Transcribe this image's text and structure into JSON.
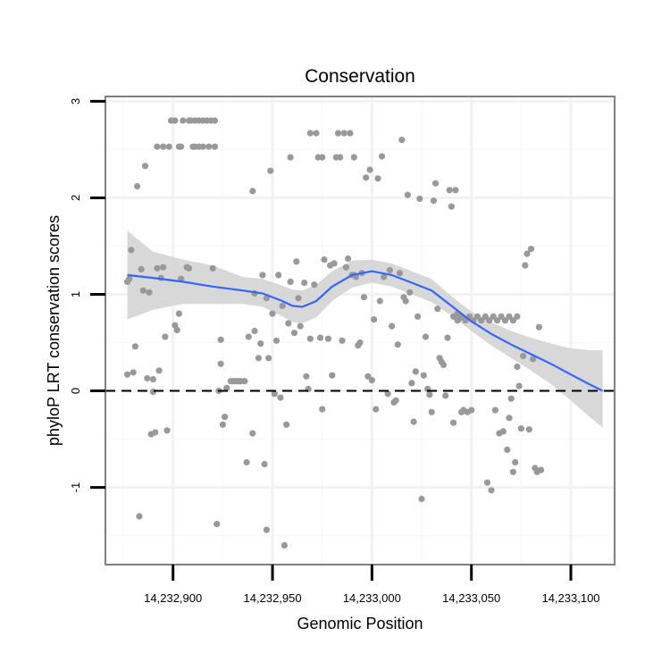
{
  "chart_data": {
    "type": "scatter",
    "title": "Conservation",
    "xlabel": "Genomic Position",
    "ylabel": "phyloP LRT conservation scores",
    "xlim": [
      14232866,
      14233122
    ],
    "ylim": [
      -1.8,
      3.05
    ],
    "x_ticks": [
      14232900,
      14232950,
      14233000,
      14233050,
      14233100
    ],
    "x_tick_labels": [
      "14,232,900",
      "14,232,950",
      "14,233,000",
      "14,233,050",
      "14,233,100"
    ],
    "y_ticks": [
      -1,
      0,
      1,
      2,
      3
    ],
    "y_tick_labels": [
      "-1",
      "0",
      "1",
      "2",
      "3"
    ],
    "reference_line": {
      "y": 0,
      "style": "dashed"
    },
    "colors": {
      "points": "#999999",
      "smooth_line": "#3366FF",
      "ribbon": "#d4d4d4",
      "panel_border": "#7f7f7f",
      "grid_major": "#f2f2f2",
      "grid_minor": "#f9f9f9"
    },
    "smooth": {
      "x": [
        14232877,
        14232890,
        14232905,
        14232920,
        14232935,
        14232945,
        14232955,
        14232960,
        14232965,
        14232972,
        14232980,
        14232990,
        14233000,
        14233010,
        14233020,
        14233030,
        14233040,
        14233050,
        14233060,
        14233070,
        14233080,
        14233090,
        14233100,
        14233110,
        14233116
      ],
      "y": [
        1.2,
        1.17,
        1.13,
        1.08,
        1.04,
        1.01,
        0.93,
        0.88,
        0.87,
        0.93,
        1.08,
        1.2,
        1.24,
        1.2,
        1.12,
        1.04,
        0.88,
        0.72,
        0.59,
        0.48,
        0.38,
        0.28,
        0.17,
        0.06,
        0.0
      ],
      "lower": [
        0.74,
        0.84,
        0.9,
        0.9,
        0.9,
        0.87,
        0.77,
        0.71,
        0.7,
        0.76,
        0.93,
        1.07,
        1.12,
        1.08,
        1.0,
        0.92,
        0.78,
        0.62,
        0.47,
        0.34,
        0.21,
        0.07,
        -0.1,
        -0.28,
        -0.38
      ],
      "upper": [
        1.66,
        1.44,
        1.36,
        1.3,
        1.18,
        1.16,
        1.09,
        1.05,
        1.04,
        1.1,
        1.24,
        1.35,
        1.36,
        1.32,
        1.24,
        1.16,
        0.98,
        0.82,
        0.71,
        0.62,
        0.55,
        0.49,
        0.44,
        0.42,
        0.42
      ]
    },
    "points": [
      [
        14232877,
        0.17
      ],
      [
        14232877,
        1.13
      ],
      [
        14232878,
        1.16
      ],
      [
        14232879,
        1.46
      ],
      [
        14232880,
        0.19
      ],
      [
        14232881,
        0.46
      ],
      [
        14232882,
        2.12
      ],
      [
        14232883,
        -1.3
      ],
      [
        14232884,
        1.26
      ],
      [
        14232885,
        1.04
      ],
      [
        14232886,
        2.33
      ],
      [
        14232887,
        0.13
      ],
      [
        14232888,
        1.02
      ],
      [
        14232889,
        -0.45
      ],
      [
        14232890,
        -0.01
      ],
      [
        14232890,
        0.12
      ],
      [
        14232891,
        -0.43
      ],
      [
        14232892,
        1.27
      ],
      [
        14232893,
        0.21
      ],
      [
        14232894,
        1.17
      ],
      [
        14232895,
        1.28
      ],
      [
        14232896,
        0.56
      ],
      [
        14232897,
        -0.41
      ],
      [
        14232892,
        2.53
      ],
      [
        14232895,
        2.53
      ],
      [
        14232898,
        2.53
      ],
      [
        14232903,
        2.53
      ],
      [
        14232904,
        2.53
      ],
      [
        14232910,
        2.53
      ],
      [
        14232911,
        2.53
      ],
      [
        14232913,
        2.53
      ],
      [
        14232915,
        2.53
      ],
      [
        14232918,
        2.53
      ],
      [
        14232921,
        2.53
      ],
      [
        14232899,
        2.8
      ],
      [
        14232901,
        2.8
      ],
      [
        14232905,
        2.8
      ],
      [
        14232908,
        2.8
      ],
      [
        14232909,
        2.8
      ],
      [
        14232911,
        2.8
      ],
      [
        14232913,
        2.8
      ],
      [
        14232915,
        2.8
      ],
      [
        14232917,
        2.8
      ],
      [
        14232919,
        2.8
      ],
      [
        14232921,
        2.8
      ],
      [
        14232901,
        0.68
      ],
      [
        14232902,
        0.63
      ],
      [
        14232903,
        0.8
      ],
      [
        14232904,
        1.16
      ],
      [
        14232907,
        1.28
      ],
      [
        14232908,
        1.27
      ],
      [
        14232920,
        1.27
      ],
      [
        14232922,
        -1.38
      ],
      [
        14232923,
        0.0
      ],
      [
        14232924,
        0.28
      ],
      [
        14232924,
        0.53
      ],
      [
        14232925,
        -0.35
      ],
      [
        14232926,
        -0.27
      ],
      [
        14232927,
        0.03
      ],
      [
        14232929,
        0.1
      ],
      [
        14232930,
        0.1
      ],
      [
        14232931,
        0.1
      ],
      [
        14232932,
        0.1
      ],
      [
        14232933,
        0.1
      ],
      [
        14232934,
        0.1
      ],
      [
        14232936,
        0.1
      ],
      [
        14232937,
        -0.74
      ],
      [
        14232938,
        0.56
      ],
      [
        14232940,
        -0.44
      ],
      [
        14232940,
        2.07
      ],
      [
        14232941,
        1.01
      ],
      [
        14232941,
        0.62
      ],
      [
        14232943,
        0.34
      ],
      [
        14232944,
        0.49
      ],
      [
        14232945,
        1.2
      ],
      [
        14232946,
        -0.76
      ],
      [
        14232947,
        0.96
      ],
      [
        14232947,
        -1.44
      ],
      [
        14232948,
        0.34
      ],
      [
        14232949,
        2.28
      ],
      [
        14232950,
        0.8
      ],
      [
        14232951,
        -0.03
      ],
      [
        14232952,
        0.52
      ],
      [
        14232953,
        1.2
      ],
      [
        14232954,
        -0.07
      ],
      [
        14232955,
        0.88
      ],
      [
        14232956,
        -1.6
      ],
      [
        14232957,
        -0.35
      ],
      [
        14232958,
        0.7
      ],
      [
        14232959,
        1.13
      ],
      [
        14232959,
        2.42
      ],
      [
        14232961,
        0.6
      ],
      [
        14232962,
        1.34
      ],
      [
        14232963,
        0.96
      ],
      [
        14232964,
        0.67
      ],
      [
        14232966,
        1.12
      ],
      [
        14232967,
        0.15
      ],
      [
        14232968,
        0.02
      ],
      [
        14232969,
        0.54
      ],
      [
        14232969,
        2.67
      ],
      [
        14232971,
        1.1
      ],
      [
        14232972,
        2.67
      ],
      [
        14232973,
        2.42
      ],
      [
        14232974,
        0.55
      ],
      [
        14232975,
        -0.19
      ],
      [
        14232975,
        2.42
      ],
      [
        14232976,
        1.36
      ],
      [
        14232978,
        0.54
      ],
      [
        14232979,
        1.3
      ],
      [
        14232980,
        0.16
      ],
      [
        14232981,
        1.32
      ],
      [
        14232982,
        2.42
      ],
      [
        14232983,
        2.67
      ],
      [
        14232984,
        2.42
      ],
      [
        14232985,
        0.52
      ],
      [
        14232986,
        2.67
      ],
      [
        14232987,
        1.28
      ],
      [
        14232988,
        1.37
      ],
      [
        14232989,
        2.67
      ],
      [
        14232990,
        1.2
      ],
      [
        14232991,
        1.2
      ],
      [
        14232991,
        2.42
      ],
      [
        14232992,
        1.18
      ],
      [
        14232993,
        0.47
      ],
      [
        14232994,
        0.5
      ],
      [
        14232995,
        1.22
      ],
      [
        14232996,
        0.97
      ],
      [
        14232997,
        2.21
      ],
      [
        14232998,
        0.15
      ],
      [
        14232999,
        2.29
      ],
      [
        14233000,
        0.11
      ],
      [
        14233001,
        0.74
      ],
      [
        14233002,
        -0.19
      ],
      [
        14233003,
        2.2
      ],
      [
        14233004,
        0.93
      ],
      [
        14233005,
        2.43
      ],
      [
        14233006,
        1.18
      ],
      [
        14233008,
        -0.03
      ],
      [
        14233009,
        1.25
      ],
      [
        14233010,
        0.67
      ],
      [
        14233011,
        -0.12
      ],
      [
        14233012,
        -0.1
      ],
      [
        14233013,
        0.48
      ],
      [
        14233014,
        1.22
      ],
      [
        14233015,
        2.6
      ],
      [
        14233016,
        0.97
      ],
      [
        14233017,
        0.93
      ],
      [
        14233018,
        2.03
      ],
      [
        14233019,
        1.02
      ],
      [
        14233020,
        0.08
      ],
      [
        14233021,
        -0.32
      ],
      [
        14233022,
        0.2
      ],
      [
        14233023,
        0.77
      ],
      [
        14233024,
        1.99
      ],
      [
        14233025,
        -1.12
      ],
      [
        14233026,
        0.16
      ],
      [
        14233027,
        0.56
      ],
      [
        14233028,
        0.02
      ],
      [
        14233029,
        -0.04
      ],
      [
        14233030,
        -0.22
      ],
      [
        14233031,
        1.97
      ],
      [
        14233032,
        2.15
      ],
      [
        14233033,
        0.85
      ],
      [
        14233034,
        0.34
      ],
      [
        14233035,
        0.3
      ],
      [
        14233036,
        0.27
      ],
      [
        14233037,
        -0.05
      ],
      [
        14233038,
        0.55
      ],
      [
        14233039,
        2.08
      ],
      [
        14233040,
        1.91
      ],
      [
        14233041,
        -0.33
      ],
      [
        14233042,
        2.08
      ],
      [
        14233043,
        0.8
      ],
      [
        14233044,
        0.75
      ],
      [
        14233045,
        -0.22
      ],
      [
        14233046,
        -0.2
      ],
      [
        14233048,
        -0.22
      ],
      [
        14233050,
        -0.2
      ],
      [
        14233041,
        0.77
      ],
      [
        14233043,
        0.73
      ],
      [
        14233045,
        0.77
      ],
      [
        14233047,
        0.73
      ],
      [
        14233049,
        0.77
      ],
      [
        14233051,
        0.73
      ],
      [
        14233053,
        0.77
      ],
      [
        14233055,
        0.73
      ],
      [
        14233057,
        0.77
      ],
      [
        14233059,
        0.73
      ],
      [
        14233061,
        0.77
      ],
      [
        14233063,
        0.73
      ],
      [
        14233065,
        0.77
      ],
      [
        14233067,
        0.73
      ],
      [
        14233069,
        0.77
      ],
      [
        14233071,
        0.73
      ],
      [
        14233073,
        0.77
      ],
      [
        14233058,
        -0.95
      ],
      [
        14233060,
        -1.03
      ],
      [
        14233062,
        -0.2
      ],
      [
        14233064,
        -0.44
      ],
      [
        14233066,
        -0.42
      ],
      [
        14233068,
        -0.61
      ],
      [
        14233069,
        -0.28
      ],
      [
        14233070,
        -0.08
      ],
      [
        14233071,
        -0.84
      ],
      [
        14233072,
        -0.74
      ],
      [
        14233073,
        0.25
      ],
      [
        14233074,
        0.05
      ],
      [
        14233075,
        -0.39
      ],
      [
        14233076,
        0.36
      ],
      [
        14233077,
        1.3
      ],
      [
        14233078,
        1.42
      ],
      [
        14233079,
        -0.4
      ],
      [
        14233080,
        1.47
      ],
      [
        14233081,
        0.33
      ],
      [
        14233082,
        -0.8
      ],
      [
        14233083,
        -0.84
      ],
      [
        14233084,
        0.66
      ],
      [
        14233085,
        -0.82
      ]
    ]
  }
}
